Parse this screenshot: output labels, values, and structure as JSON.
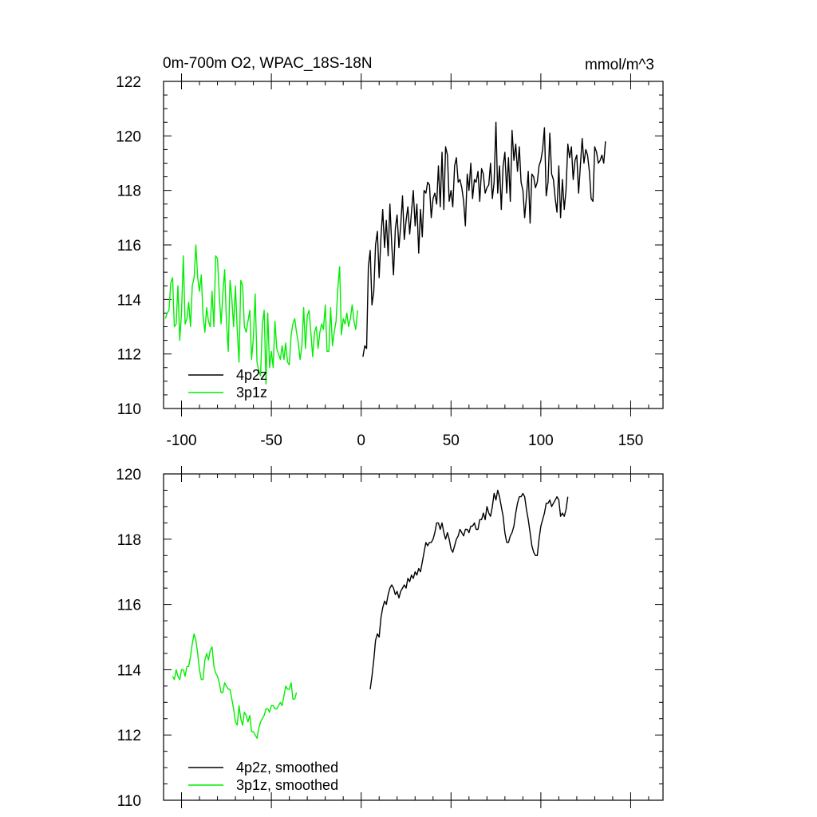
{
  "chart_data": [
    {
      "type": "line",
      "title": "0m-700m O2, WPAC_18S-18N",
      "units": "mmol/m^3",
      "xlim": [
        -110,
        168
      ],
      "ylim": [
        110,
        122
      ],
      "xticks": [
        -100,
        -50,
        0,
        50,
        100,
        150
      ],
      "yticks": [
        110,
        112,
        114,
        116,
        118,
        120,
        122
      ],
      "legend_position": "bottom-left",
      "series": [
        {
          "name": "4p2z",
          "color": "#000000",
          "x_start": 1,
          "x_step": 1,
          "values": [
            111.9,
            112.3,
            112.2,
            115.2,
            115.8,
            113.8,
            114.3,
            116.0,
            116.5,
            114.8,
            116.3,
            117.3,
            115.9,
            116.9,
            115.6,
            117.5,
            116.0,
            114.9,
            116.6,
            117.1,
            115.9,
            116.7,
            117.8,
            116.2,
            116.9,
            117.4,
            116.4,
            117.2,
            118.0,
            116.7,
            117.5,
            115.7,
            117.3,
            116.3,
            118.0,
            117.9,
            118.3,
            118.2,
            117.0,
            117.7,
            117.9,
            117.5,
            118.9,
            117.4,
            119.4,
            117.3,
            119.6,
            119.3,
            117.6,
            118.0,
            117.4,
            118.9,
            119.2,
            118.3,
            118.4,
            118.1,
            117.6,
            116.7,
            118.6,
            118.0,
            119.0,
            117.7,
            118.4,
            118.3,
            118.7,
            117.6,
            118.8,
            118.6,
            117.9,
            118.1,
            118.2,
            119.0,
            117.7,
            118.3,
            120.5,
            117.9,
            118.9,
            117.3,
            118.9,
            119.4,
            117.9,
            119.2,
            117.6,
            120.2,
            119.1,
            119.7,
            118.7,
            119.6,
            118.3,
            118.0,
            117.0,
            117.8,
            118.7,
            116.8,
            118.6,
            118.5,
            118.1,
            118.3,
            118.9,
            119.1,
            119.5,
            120.3,
            117.8,
            118.3,
            120.1,
            118.6,
            118.4,
            117.7,
            117.2,
            118.9,
            117.0,
            118.4,
            117.3,
            118.0,
            119.7,
            119.2,
            119.6,
            118.4,
            119.1,
            119.3,
            117.9,
            118.9,
            119.9,
            119.0,
            119.5,
            119.3,
            118.7,
            117.7,
            117.6,
            119.6,
            119.4,
            119.0,
            119.1,
            119.3,
            119.0,
            119.8
          ]
        },
        {
          "name": "3p1z",
          "color": "#00ee00",
          "x_start": -109,
          "x_step": 1,
          "values": [
            113.3,
            113.5,
            113.6,
            114.6,
            114.8,
            113.0,
            113.1,
            114.5,
            112.5,
            113.5,
            115.6,
            113.1,
            113.3,
            113.9,
            113.0,
            114.5,
            114.8,
            116.0,
            114.8,
            114.3,
            114.9,
            113.4,
            112.8,
            113.7,
            113.2,
            113.0,
            114.3,
            113.0,
            115.6,
            115.5,
            114.2,
            113.1,
            114.2,
            115.1,
            113.2,
            112.1,
            114.7,
            114.0,
            113.0,
            114.5,
            112.9,
            111.7,
            114.7,
            114.5,
            113.0,
            112.8,
            113.2,
            113.6,
            111.8,
            112.6,
            114.2,
            111.7,
            111.4,
            111.2,
            113.1,
            113.6,
            110.9,
            113.5,
            111.5,
            112.1,
            111.5,
            113.2,
            112.2,
            112.0,
            111.8,
            112.3,
            111.8,
            112.4,
            111.7,
            111.6,
            112.7,
            113.1,
            113.3,
            112.8,
            112.4,
            111.8,
            112.3,
            113.7,
            112.2,
            113.4,
            113.6,
            112.8,
            111.9,
            112.8,
            113.0,
            112.2,
            112.8,
            113.1,
            112.9,
            113.8,
            112.1,
            112.1,
            113.7,
            112.3,
            112.8,
            113.2,
            114.4,
            115.2,
            112.7,
            113.3,
            113.1,
            113.5,
            113.0,
            113.3,
            113.8,
            113.2,
            112.9,
            113.6
          ]
        }
      ]
    },
    {
      "type": "line",
      "xlim": [
        -110,
        168
      ],
      "ylim": [
        110,
        120
      ],
      "yticks": [
        110,
        112,
        114,
        116,
        118,
        120
      ],
      "legend_position": "bottom-left",
      "series": [
        {
          "name": "4p2z, smoothed",
          "color": "#000000",
          "x_start": 5,
          "x_step": 1,
          "values": [
            113.4,
            113.8,
            114.3,
            114.9,
            115.1,
            115.0,
            115.6,
            115.9,
            116.1,
            116.0,
            116.3,
            116.5,
            116.6,
            116.5,
            116.3,
            116.4,
            116.2,
            116.4,
            116.5,
            116.6,
            116.5,
            116.8,
            116.7,
            116.9,
            116.8,
            117.0,
            116.9,
            117.1,
            117.0,
            117.3,
            117.6,
            117.9,
            117.8,
            117.9,
            117.9,
            118.0,
            118.2,
            118.5,
            118.5,
            118.3,
            118.5,
            118.2,
            118.0,
            118.2,
            118.0,
            117.7,
            117.6,
            117.8,
            118.0,
            118.1,
            118.3,
            118.2,
            118.1,
            118.3,
            118.3,
            118.2,
            118.4,
            118.4,
            118.5,
            118.3,
            118.3,
            118.6,
            118.6,
            118.8,
            118.6,
            119.0,
            118.8,
            118.7,
            119.0,
            119.4,
            119.2,
            119.5,
            119.3,
            119.0,
            118.7,
            118.2,
            117.9,
            117.9,
            118.1,
            118.2,
            118.4,
            118.8,
            119.1,
            119.3,
            119.3,
            119.4,
            119.3,
            118.9,
            118.6,
            118.2,
            117.8,
            117.6,
            117.5,
            117.5,
            118.0,
            118.4,
            118.6,
            118.8,
            119.1,
            119.1,
            119.2,
            119.0,
            119.1,
            119.2,
            119.3,
            119.2,
            118.7,
            118.8,
            118.7,
            118.9,
            119.3
          ]
        },
        {
          "name": "3p1z, smoothed",
          "color": "#00ee00",
          "x_start": -105,
          "x_step": 1,
          "values": [
            113.8,
            113.7,
            114.0,
            113.8,
            113.7,
            114.0,
            114.0,
            113.8,
            114.1,
            114.1,
            114.4,
            114.8,
            115.1,
            114.9,
            114.5,
            114.0,
            113.7,
            113.7,
            114.3,
            114.5,
            114.3,
            114.6,
            114.7,
            114.1,
            113.9,
            113.8,
            113.6,
            113.3,
            113.3,
            113.6,
            113.5,
            113.4,
            113.4,
            113.1,
            112.8,
            112.4,
            112.3,
            112.9,
            112.5,
            112.3,
            112.7,
            112.6,
            112.4,
            112.6,
            112.1,
            112.1,
            112.0,
            111.9,
            112.2,
            112.4,
            112.5,
            112.6,
            112.8,
            112.8,
            112.7,
            112.9,
            112.9,
            112.8,
            112.8,
            112.9,
            113.0,
            112.9,
            113.2,
            113.5,
            113.4,
            113.4,
            113.6,
            113.1,
            113.1,
            113.3
          ]
        }
      ]
    }
  ]
}
